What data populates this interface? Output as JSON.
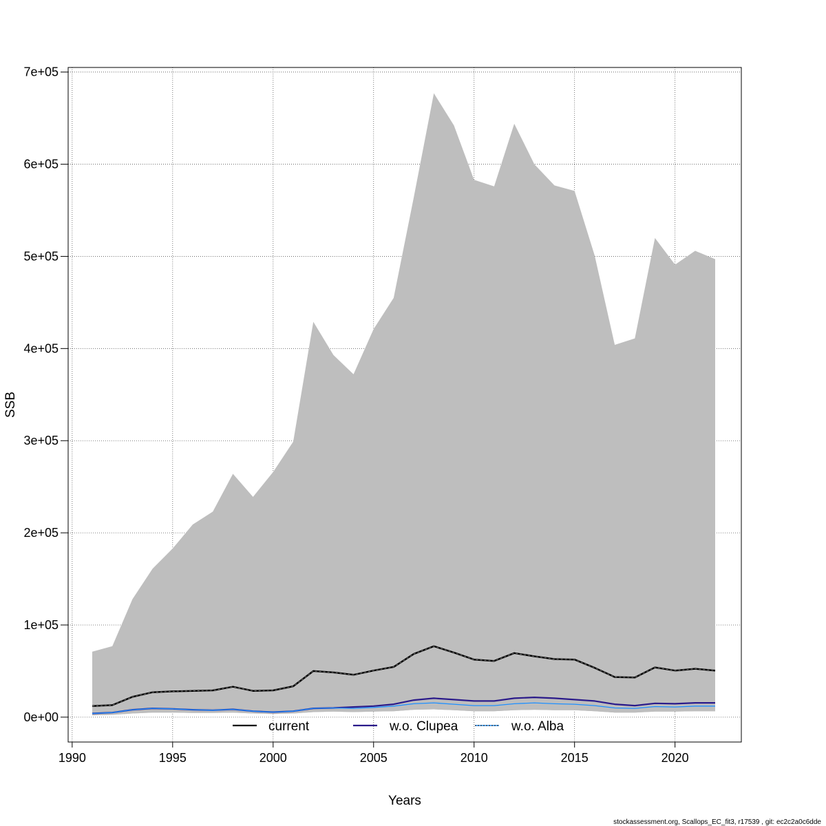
{
  "chart_data": {
    "type": "line",
    "title": "",
    "xlabel": "Years",
    "ylabel": "SSB",
    "xlim": [
      1989.8,
      2023.3
    ],
    "ylim": [
      -27000,
      705000
    ],
    "x_ticks": [
      1990,
      1995,
      2000,
      2005,
      2010,
      2015,
      2020
    ],
    "x_tick_labels": [
      "1990",
      "1995",
      "2000",
      "2005",
      "2010",
      "2015",
      "2020"
    ],
    "y_ticks": [
      0,
      100000,
      200000,
      300000,
      400000,
      500000,
      600000,
      700000
    ],
    "y_tick_labels": [
      "0e+00",
      "1e+05",
      "2e+05",
      "3e+05",
      "4e+05",
      "5e+05",
      "6e+05",
      "7e+05"
    ],
    "grid": true,
    "legend_position": "bottom",
    "x": [
      1991,
      1992,
      1993,
      1994,
      1995,
      1996,
      1997,
      1998,
      1999,
      2000,
      2001,
      2002,
      2003,
      2004,
      2005,
      2006,
      2007,
      2008,
      2009,
      2010,
      2011,
      2012,
      2013,
      2014,
      2015,
      2016,
      2017,
      2018,
      2019,
      2020,
      2021,
      2022
    ],
    "bands": [
      {
        "color": "#bebebe",
        "lower": [
          2000,
          2500,
          4000,
          5000,
          5000,
          4500,
          4500,
          5000,
          4000,
          3500,
          4000,
          5500,
          6000,
          5500,
          6000,
          6500,
          8000,
          8500,
          7500,
          6500,
          6500,
          7500,
          8000,
          7500,
          7500,
          6500,
          5000,
          5000,
          6000,
          6000,
          6500,
          6500
        ],
        "upper": [
          71000,
          77000,
          128000,
          161000,
          183000,
          209000,
          223000,
          264000,
          239000,
          266000,
          299000,
          429000,
          393000,
          372000,
          421000,
          455000,
          564000,
          677000,
          642000,
          583000,
          576000,
          644000,
          600000,
          577000,
          571000,
          501000,
          404000,
          411000,
          520000,
          491000,
          506000,
          497000
        ]
      },
      {
        "color": "#bebebe",
        "lower": [
          2000,
          2500,
          4000,
          5000,
          5000,
          4500,
          4500,
          5000,
          4000,
          3500,
          4000,
          5500,
          6000,
          5500,
          6000,
          6500,
          8000,
          8500,
          7500,
          6500,
          6500,
          7500,
          8000,
          7500,
          7500,
          6500,
          5000,
          5000,
          6000,
          6000,
          6500,
          6500
        ],
        "upper": [
          4000,
          5000,
          8000,
          9500,
          9000,
          8000,
          7500,
          8500,
          6500,
          5500,
          6500,
          9500,
          10000,
          9500,
          10500,
          12000,
          14500,
          15500,
          14000,
          12500,
          12500,
          14500,
          15500,
          14500,
          14000,
          12500,
          10000,
          9500,
          11500,
          11000,
          12000,
          12000
        ]
      }
    ],
    "series": [
      {
        "name": "current",
        "color": "#000000",
        "values": [
          12000,
          13000,
          22000,
          27000,
          28000,
          28500,
          29000,
          33000,
          28500,
          29000,
          33500,
          50000,
          48500,
          46000,
          50500,
          54500,
          68500,
          77000,
          70000,
          62500,
          61000,
          69500,
          66000,
          63000,
          62500,
          53500,
          43500,
          43000,
          54000,
          50500,
          52500,
          50500
        ]
      },
      {
        "name": "w.o. Clupea",
        "color": "#2a1a8a",
        "values": [
          4000,
          5000,
          8000,
          9500,
          9000,
          8000,
          7500,
          8500,
          6500,
          5500,
          6500,
          9500,
          10000,
          11000,
          12000,
          14000,
          18500,
          20500,
          19000,
          17500,
          17500,
          20500,
          21500,
          20500,
          19000,
          17500,
          14000,
          12500,
          15000,
          14500,
          15500,
          15500
        ]
      },
      {
        "name": "w.o. Alba",
        "color": "#1e90ff",
        "values": [
          4000,
          5000,
          8000,
          9500,
          9000,
          8000,
          7500,
          8500,
          6500,
          5500,
          6500,
          9500,
          10000,
          9500,
          10500,
          12000,
          14500,
          15500,
          14000,
          12500,
          12500,
          14500,
          15500,
          14500,
          14000,
          12500,
          10000,
          9500,
          11500,
          11000,
          12000,
          12000
        ]
      }
    ],
    "footer": "stockassessment.org, Scallops_EC_fit3, r17539 , git: ec2c2a0c6dde"
  }
}
